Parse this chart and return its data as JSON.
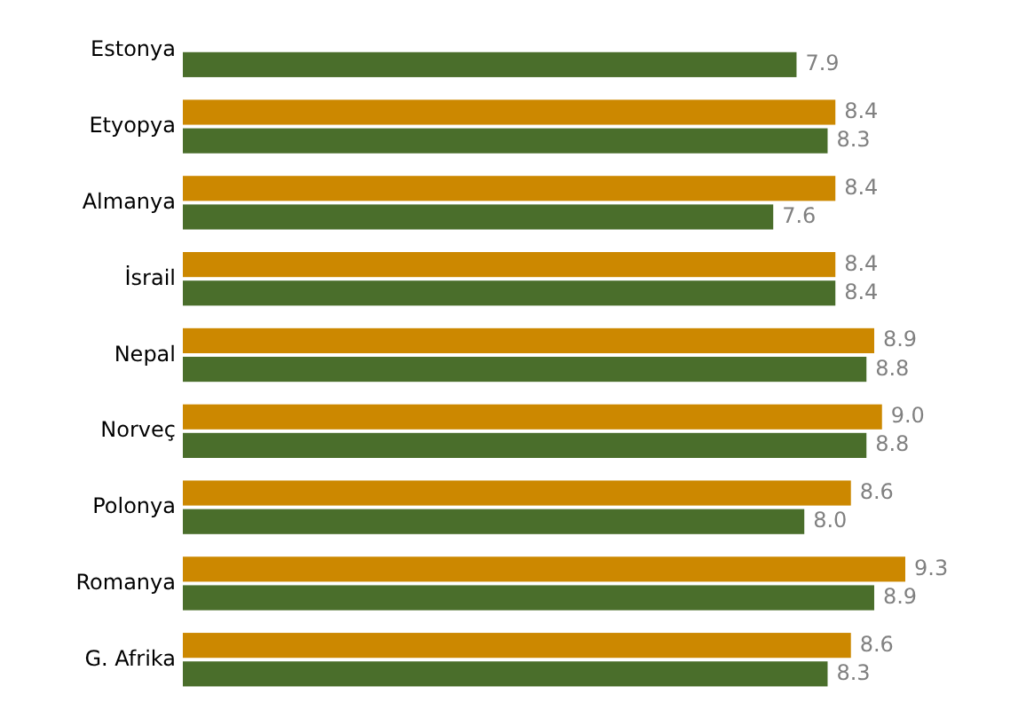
{
  "chart_data": {
    "type": "bar",
    "orientation": "horizontal",
    "categories": [
      "Estonya",
      "Etyopya",
      "Almanya",
      "İsrail",
      "Nepal",
      "Norveç",
      "Polonya",
      "Romanya",
      "G. Afrika"
    ],
    "series": [
      {
        "color": "#cc8800",
        "values": [
          null,
          8.4,
          8.4,
          8.4,
          8.9,
          9.0,
          8.6,
          9.3,
          8.6
        ],
        "value_labels": [
          null,
          "8.4",
          "8.4",
          "8.4",
          "8.9",
          "9.0",
          "8.6",
          "9.3",
          "8.6"
        ]
      },
      {
        "color": "#4a6e2b",
        "values": [
          7.9,
          8.3,
          7.6,
          8.4,
          8.8,
          8.8,
          8.0,
          8.9,
          8.3
        ],
        "value_labels": [
          "7.9",
          "8.3",
          "7.6",
          "8.4",
          "8.8",
          "8.8",
          "8.0",
          "8.9",
          "8.3"
        ]
      }
    ]
  }
}
